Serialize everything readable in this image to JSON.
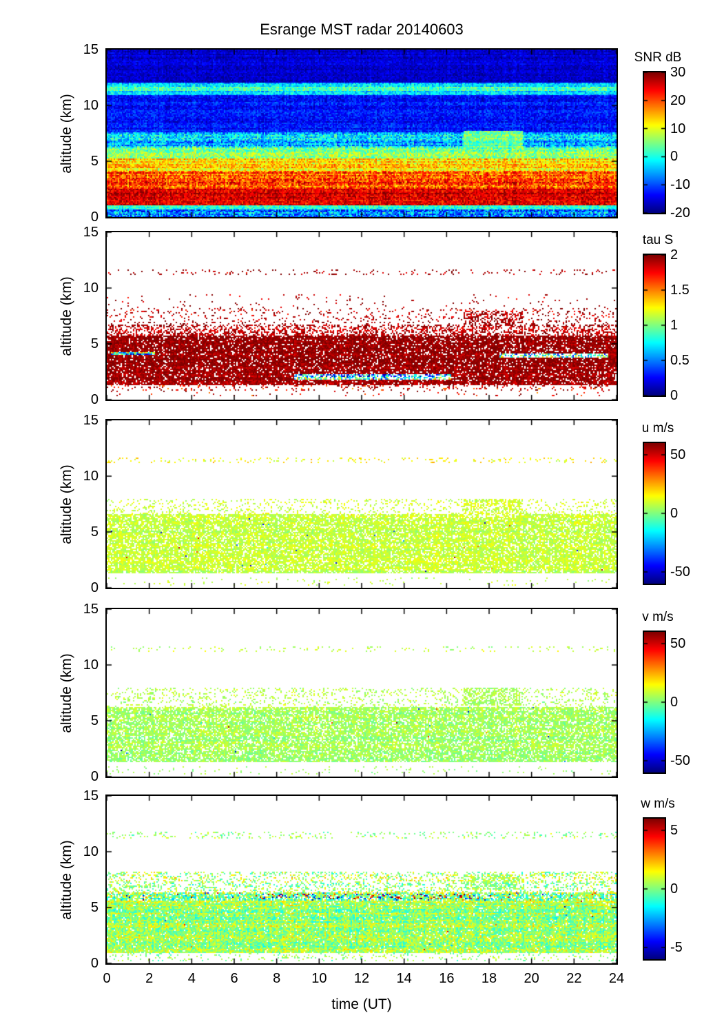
{
  "figure": {
    "title": "Esrange MST radar 20140603",
    "xlabel": "time (UT)",
    "ylabel": "altitude (km)",
    "x_range": [
      0,
      24
    ],
    "y_range": [
      0,
      15
    ],
    "x_ticks": [
      0,
      2,
      4,
      6,
      8,
      10,
      12,
      14,
      16,
      18,
      20,
      22,
      24
    ],
    "x_tick_labels": [
      "0",
      "2",
      "4",
      "6",
      "8",
      "10",
      "12",
      "14",
      "16",
      "18",
      "20",
      "22",
      "24"
    ],
    "y_ticks": [
      0,
      5,
      10,
      15
    ],
    "y_tick_labels": [
      "0",
      "5",
      "10",
      "15"
    ]
  },
  "chart_data": [
    {
      "type": "heatmap",
      "id": "snr",
      "colorbar_label": "SNR dB",
      "colormap": "jet",
      "clim": [
        -20,
        30
      ],
      "colorbar_tick_values": [
        30,
        20,
        10,
        0,
        -10,
        -20
      ],
      "colorbar_tick_labels": [
        "30",
        "20",
        "10",
        "0",
        "-10",
        "-20"
      ],
      "x_range": [
        0,
        24
      ],
      "y_range": [
        0,
        15
      ],
      "bands": [
        {
          "y0": 0.0,
          "y1": 0.75,
          "v": -8,
          "vr": 9,
          "fill": 1
        },
        {
          "y0": 0.75,
          "y1": 1.15,
          "v": 2,
          "vr": 5,
          "fill": 1
        },
        {
          "y0": 1.15,
          "y1": 2.6,
          "v": 26,
          "vr": 5,
          "fill": 1
        },
        {
          "y0": 2.6,
          "y1": 4.2,
          "v": 20,
          "vr": 7,
          "fill": 1
        },
        {
          "y0": 4.2,
          "y1": 5.3,
          "v": 13,
          "vr": 6,
          "fill": 1
        },
        {
          "y0": 5.3,
          "y1": 6.3,
          "v": 5,
          "vr": 6,
          "fill": 1
        },
        {
          "y0": 6.3,
          "y1": 7.6,
          "v": -4,
          "vr": 7,
          "fill": 1
        },
        {
          "y0": 7.6,
          "y1": 10.9,
          "v": -13,
          "vr": 4,
          "fill": 1
        },
        {
          "y0": 10.9,
          "y1": 12.1,
          "v": -4,
          "vr": 5,
          "fill": 1
        },
        {
          "y0": 12.1,
          "y1": 15.0,
          "v": -16,
          "vr": 3,
          "fill": 1
        }
      ],
      "features": [
        {
          "y": 11.5,
          "h": 0.35,
          "v": 1,
          "vr": 5,
          "fill": 1
        },
        {
          "y": 7.0,
          "h": 1.4,
          "v": 4,
          "vr": 5,
          "fill": 1,
          "x0": 16.8,
          "x1": 19.6
        }
      ]
    },
    {
      "type": "heatmap",
      "id": "tau",
      "colorbar_label": "tau S",
      "colormap": "jet",
      "clim": [
        0,
        2
      ],
      "colorbar_tick_values": [
        2,
        1.5,
        1,
        0.5,
        0
      ],
      "colorbar_tick_labels": [
        "2",
        "1.5",
        "1",
        "0.5",
        "0"
      ],
      "x_range": [
        0,
        24
      ],
      "y_range": [
        0,
        15
      ],
      "bands": [
        {
          "y0": 0.4,
          "y1": 0.9,
          "v": 1.8,
          "vr": 0.3,
          "fill": 0.04
        },
        {
          "y0": 0.9,
          "y1": 1.4,
          "v": 1.8,
          "vr": 0.3,
          "fill": 0.15
        },
        {
          "y0": 1.4,
          "y1": 5.8,
          "v": 1.95,
          "vr": 0.12,
          "fill": 0.88
        },
        {
          "y0": 5.8,
          "y1": 6.8,
          "v": 1.9,
          "vr": 0.15,
          "fill": 0.45
        },
        {
          "y0": 6.8,
          "y1": 8.2,
          "v": 1.9,
          "vr": 0.2,
          "fill": 0.12
        },
        {
          "y0": 8.2,
          "y1": 9.5,
          "v": 1.9,
          "vr": 0.15,
          "fill": 0.03
        }
      ],
      "features": [
        {
          "y": 11.45,
          "h": 0.5,
          "v": 1.9,
          "vr": 0.15,
          "fill": 0.1
        },
        {
          "y": 7.2,
          "h": 1.6,
          "v": 1.9,
          "vr": 0.15,
          "fill": 0.5,
          "x0": 16.8,
          "x1": 19.6
        },
        {
          "y": 4.15,
          "h": 0.3,
          "v": 0.8,
          "vr": 0.55,
          "fill": 0.9,
          "x0": 0.2,
          "x1": 2.3
        },
        {
          "y": 4.0,
          "h": 0.28,
          "v": 0.9,
          "vr": 0.6,
          "fill": 0.5,
          "x0": 18.5,
          "x1": 23.6
        },
        {
          "y": 2.05,
          "h": 0.5,
          "v": 0.7,
          "vr": 0.55,
          "fill": 0.6,
          "x0": 8.8,
          "x1": 16.2
        }
      ]
    },
    {
      "type": "heatmap",
      "id": "u",
      "colorbar_label": "u m/s",
      "colormap": "jet",
      "clim": [
        -60,
        60
      ],
      "colorbar_tick_values": [
        50,
        0,
        -50
      ],
      "colorbar_tick_labels": [
        "50",
        "0",
        "-50"
      ],
      "x_range": [
        0,
        24
      ],
      "y_range": [
        0,
        15
      ],
      "bands": [
        {
          "y0": 0.3,
          "y1": 1.0,
          "v": 8,
          "vr": 5,
          "fill": 0.05
        },
        {
          "y0": 1.4,
          "y1": 6.6,
          "v": 8,
          "vr": 6,
          "fill": 0.8,
          "spike": 0.003
        },
        {
          "y0": 6.6,
          "y1": 8.0,
          "v": 10,
          "vr": 6,
          "fill": 0.18
        }
      ],
      "features": [
        {
          "y": 11.45,
          "h": 0.5,
          "v": 15,
          "vr": 8,
          "fill": 0.12
        },
        {
          "y": 7.2,
          "h": 1.6,
          "v": 10,
          "vr": 6,
          "fill": 0.55,
          "x0": 16.8,
          "x1": 19.6
        }
      ]
    },
    {
      "type": "heatmap",
      "id": "v",
      "colorbar_label": "v m/s",
      "colormap": "jet",
      "clim": [
        -60,
        60
      ],
      "colorbar_tick_values": [
        50,
        0,
        -50
      ],
      "colorbar_tick_labels": [
        "50",
        "0",
        "-50"
      ],
      "x_range": [
        0,
        24
      ],
      "y_range": [
        0,
        15
      ],
      "bands": [
        {
          "y0": 0.3,
          "y1": 1.0,
          "v": 4,
          "vr": 5,
          "fill": 0.05
        },
        {
          "y0": 1.3,
          "y1": 6.3,
          "v": 4,
          "vr": 7,
          "fill": 0.78,
          "spike": 0.003
        },
        {
          "y0": 6.3,
          "y1": 8.0,
          "v": 6,
          "vr": 6,
          "fill": 0.18
        }
      ],
      "features": [
        {
          "y": 11.45,
          "h": 0.5,
          "v": 8,
          "vr": 6,
          "fill": 0.1
        },
        {
          "y": 7.2,
          "h": 1.6,
          "v": 5,
          "vr": 5,
          "fill": 0.6,
          "x0": 16.8,
          "x1": 19.6
        }
      ]
    },
    {
      "type": "heatmap",
      "id": "w",
      "colorbar_label": "w m/s",
      "colormap": "jet",
      "clim": [
        -6,
        6
      ],
      "colorbar_tick_values": [
        5,
        0,
        -5
      ],
      "colorbar_tick_labels": [
        "5",
        "0",
        "-5"
      ],
      "x_range": [
        0,
        24
      ],
      "y_range": [
        0,
        15
      ],
      "bands": [
        {
          "y0": 0.3,
          "y1": 1.0,
          "v": 0.3,
          "vr": 1.0,
          "fill": 0.12
        },
        {
          "y0": 1.0,
          "y1": 5.6,
          "v": 0.3,
          "vr": 1.4,
          "fill": 0.95,
          "spike": 0.002
        },
        {
          "y0": 5.6,
          "y1": 6.4,
          "v": 0.2,
          "vr": 2.0,
          "fill": 0.8,
          "spike": 0.06
        },
        {
          "y0": 6.4,
          "y1": 8.2,
          "v": 0.5,
          "vr": 1.5,
          "fill": 0.3
        }
      ],
      "features": [
        {
          "y": 11.5,
          "h": 0.6,
          "v": 0.5,
          "vr": 1.0,
          "fill": 0.15
        },
        {
          "y": 6.05,
          "h": 0.45,
          "v": 0,
          "vr": 1.5,
          "fill": 0.85,
          "spike": 0.45,
          "x0": 7.0,
          "x1": 17.5
        },
        {
          "y": 7.3,
          "h": 1.4,
          "v": 0.4,
          "vr": 1.2,
          "fill": 0.6,
          "x0": 16.8,
          "x1": 19.6
        }
      ]
    }
  ]
}
